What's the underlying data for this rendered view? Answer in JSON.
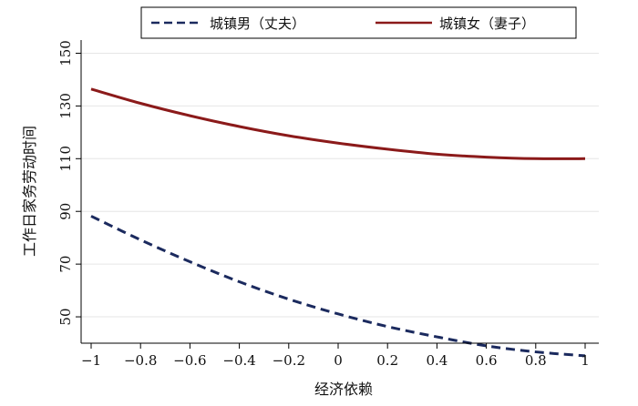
{
  "chart_data": {
    "type": "line",
    "title": "",
    "xlabel": "经济依赖",
    "ylabel": "工作日家务劳动时间",
    "xlim": [
      -1,
      1
    ],
    "ylim": [
      40,
      155
    ],
    "x_ticks": [
      -1,
      -0.8,
      -0.6,
      -0.4,
      -0.2,
      0,
      0.2,
      0.4,
      0.6,
      0.8,
      1
    ],
    "x_tick_labels": [
      "−1",
      "−0.8",
      "−0.6",
      "−0.4",
      "−0.2",
      "0",
      "0.2",
      "0.4",
      "0.6",
      "0.8",
      "1"
    ],
    "y_ticks": [
      50,
      70,
      90,
      110,
      130,
      150
    ],
    "y_tick_labels": [
      "50",
      "70",
      "90",
      "110",
      "130",
      "150"
    ],
    "grid": true,
    "legend_position": "top",
    "x": [
      -1,
      -0.8,
      -0.6,
      -0.4,
      -0.2,
      0,
      0.2,
      0.4,
      0.6,
      0.8,
      1
    ],
    "series": [
      {
        "name": "城镇男（丈夫）",
        "color": "#1b2a5e",
        "dash": "dashed",
        "values": [
          88.2,
          79.2,
          70.9,
          63.3,
          56.7,
          51.1,
          46.3,
          42.4,
          39.0,
          36.7,
          35.2
        ]
      },
      {
        "name": "城镇女（妻子）",
        "color": "#8b1a1a",
        "dash": "solid",
        "values": [
          136.4,
          131.0,
          126.3,
          122.2,
          118.7,
          115.9,
          113.6,
          111.7,
          110.6,
          110.0,
          110.0
        ]
      }
    ]
  }
}
